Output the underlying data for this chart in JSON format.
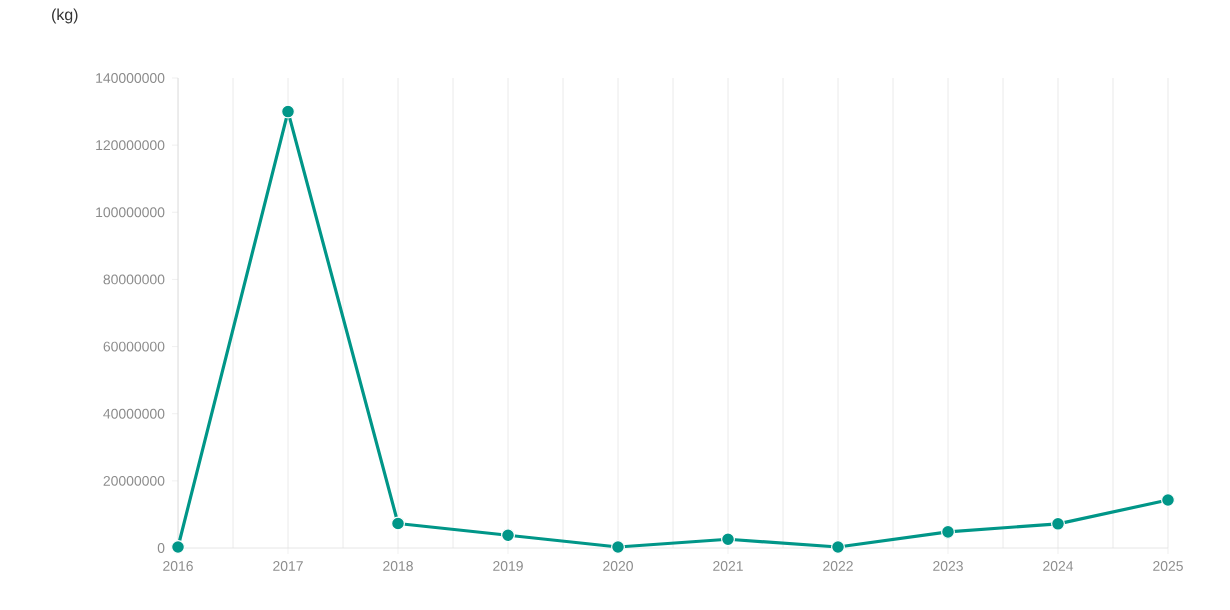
{
  "chart_data": {
    "type": "line",
    "ylabel": "(kg)",
    "categories": [
      "2016",
      "2017",
      "2018",
      "2019",
      "2020",
      "2021",
      "2022",
      "2023",
      "2024",
      "2025"
    ],
    "series": [
      {
        "color": "#009688",
        "values": [
          300000,
          130000000,
          7300000,
          3800000,
          300000,
          2600000,
          300000,
          4800000,
          7200000,
          14300000
        ]
      }
    ],
    "ylim": [
      0,
      140000000
    ],
    "yticks": [
      0,
      20000000,
      40000000,
      60000000,
      80000000,
      100000000,
      120000000,
      140000000
    ],
    "grid": "x",
    "marker": "circle",
    "line_style": "solid"
  }
}
